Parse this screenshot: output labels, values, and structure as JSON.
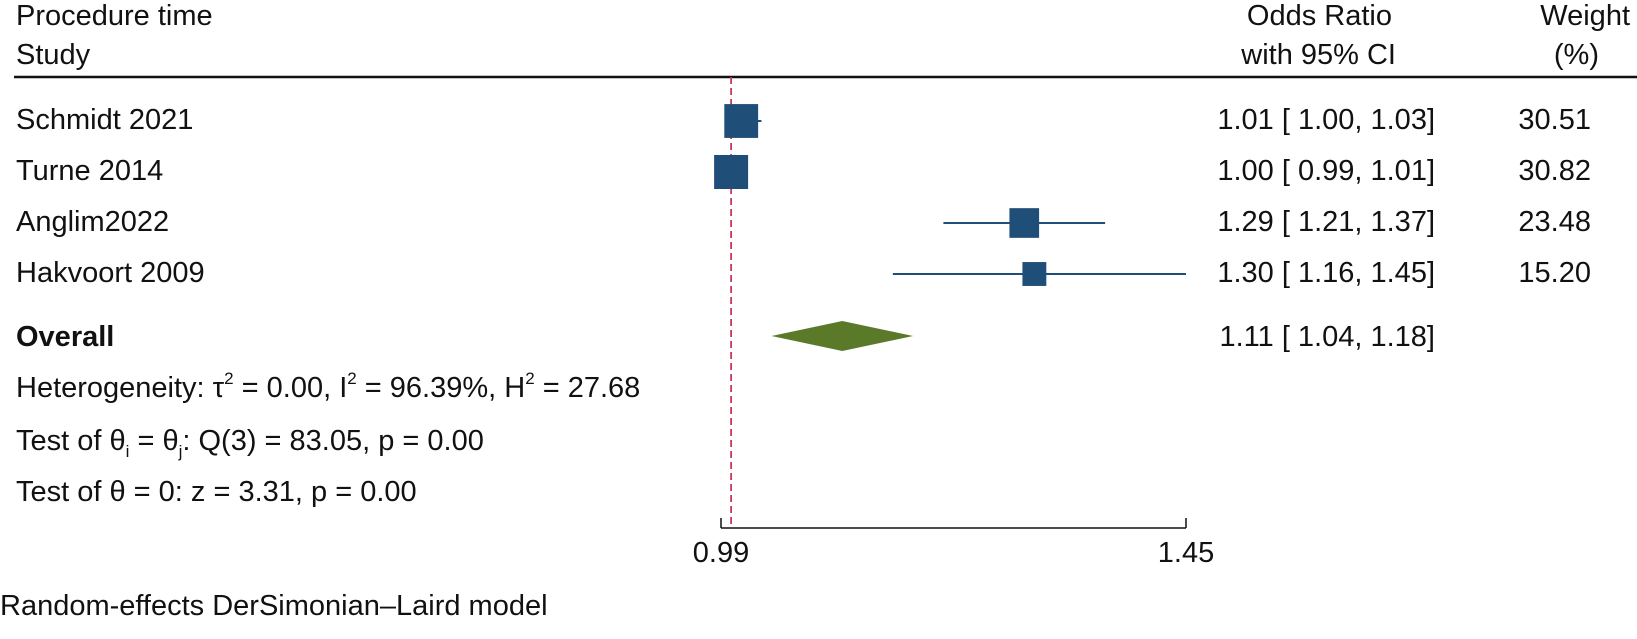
{
  "header": {
    "group_label": "Procedure time",
    "study_label": "Study",
    "or_label_1": "Odds Ratio",
    "or_label_2": "with 95% CI",
    "weight_label_1": "Weight",
    "weight_label_2": "(%)"
  },
  "colors": {
    "study_marker": "#1f4e79",
    "overall_diamond": "#5a7a2a",
    "reference_line": "#c8385a",
    "rule": "#111111"
  },
  "chart_data": {
    "type": "forest",
    "x_ticks": [
      0.99,
      1.45
    ],
    "tick_labels": [
      "0.99",
      "1.45"
    ],
    "reference_line": 1.0,
    "studies": [
      {
        "name": "Schmidt 2021",
        "or": 1.01,
        "lo": 1.0,
        "hi": 1.03,
        "weight": 30.51,
        "ci_text": "1.01 [ 1.00,  1.03]",
        "weight_text": "30.51"
      },
      {
        "name": "Turne 2014",
        "or": 1.0,
        "lo": 0.99,
        "hi": 1.01,
        "weight": 30.82,
        "ci_text": "1.00 [ 0.99,  1.01]",
        "weight_text": "30.82"
      },
      {
        "name": "Anglim2022",
        "or": 1.29,
        "lo": 1.21,
        "hi": 1.37,
        "weight": 23.48,
        "ci_text": "1.29 [ 1.21,  1.37]",
        "weight_text": "23.48"
      },
      {
        "name": "Hakvoort 2009",
        "or": 1.3,
        "lo": 1.16,
        "hi": 1.45,
        "weight": 15.2,
        "ci_text": "1.30 [ 1.16,  1.45]",
        "weight_text": "15.20"
      }
    ],
    "overall": {
      "label": "Overall",
      "or": 1.11,
      "lo": 1.04,
      "hi": 1.18,
      "ci_text": "1.11 [ 1.04,  1.18]"
    }
  },
  "stats": {
    "het_prefix": "Heterogeneity: τ",
    "het_exp": "2",
    "het_tau": " = 0.00, I",
    "het_i": " = 96.39%, H",
    "het_h": " = 27.68",
    "q_prefix": "Test of θ",
    "q_sub_i": "i",
    "q_mid": " = θ",
    "q_sub_j": "j",
    "q_rest": ": Q(3) = 83.05, p = 0.00",
    "z_test": "Test of θ = 0: z = 3.31, p = 0.00"
  },
  "footer": {
    "model_note": "Random-effects DerSimonian–Laird model"
  }
}
